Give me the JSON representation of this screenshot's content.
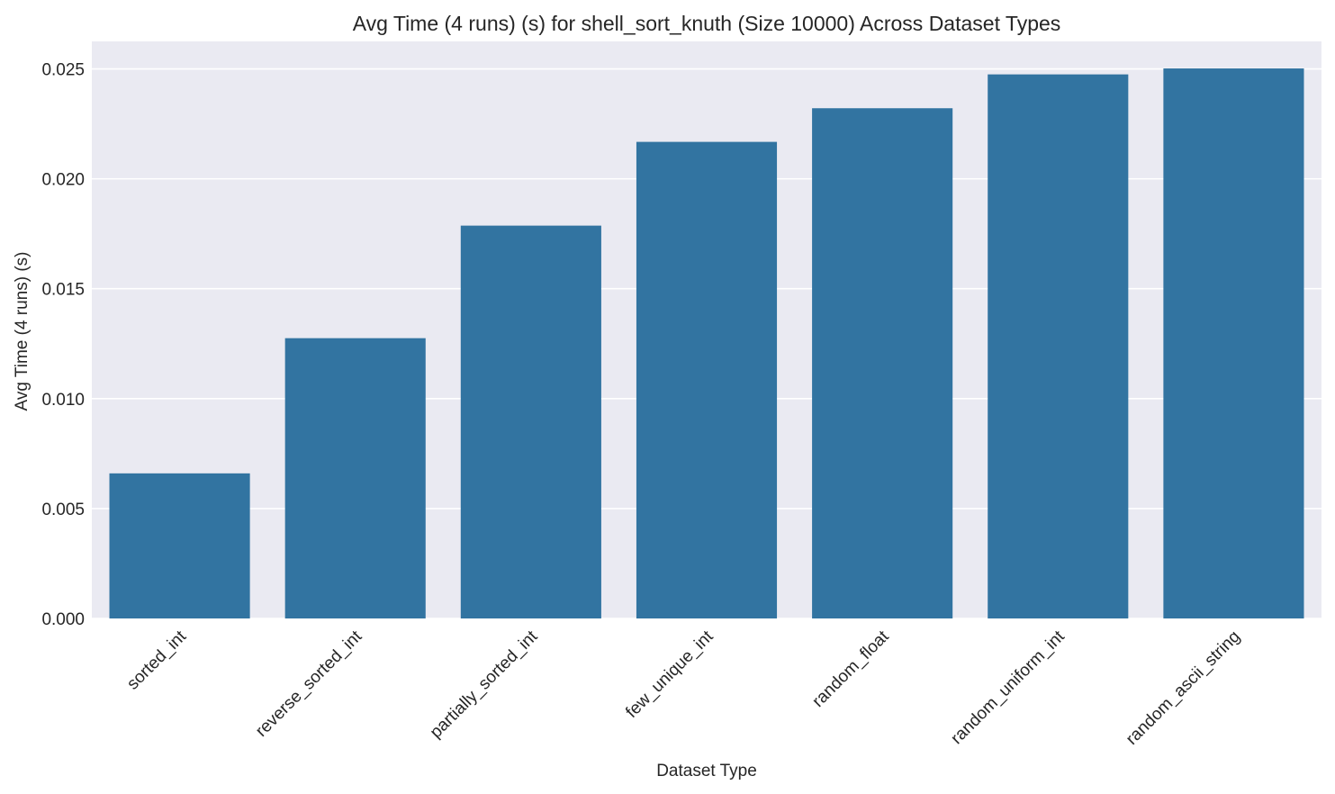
{
  "chart_data": {
    "type": "bar",
    "title": "Avg Time (4 runs) (s) for shell_sort_knuth (Size 10000) Across Dataset Types",
    "xlabel": "Dataset Type",
    "ylabel": "Avg Time (4 runs) (s)",
    "categories": [
      "sorted_int",
      "reverse_sorted_int",
      "partially_sorted_int",
      "few_unique_int",
      "random_float",
      "random_uniform_int",
      "random_ascii_string"
    ],
    "values": [
      0.0066,
      0.01275,
      0.01787,
      0.02168,
      0.02321,
      0.02475,
      0.02502
    ],
    "ylim": [
      0,
      0.02625
    ],
    "yticks": [
      0.0,
      0.005,
      0.01,
      0.015,
      0.02,
      0.025
    ],
    "ytick_labels": [
      "0.000",
      "0.005",
      "0.010",
      "0.015",
      "0.020",
      "0.025"
    ],
    "grid": true,
    "colors": {
      "bar": "#3274a1",
      "plot_background": "#eaeaf2",
      "grid": "#ffffff",
      "text": "#262626"
    }
  }
}
